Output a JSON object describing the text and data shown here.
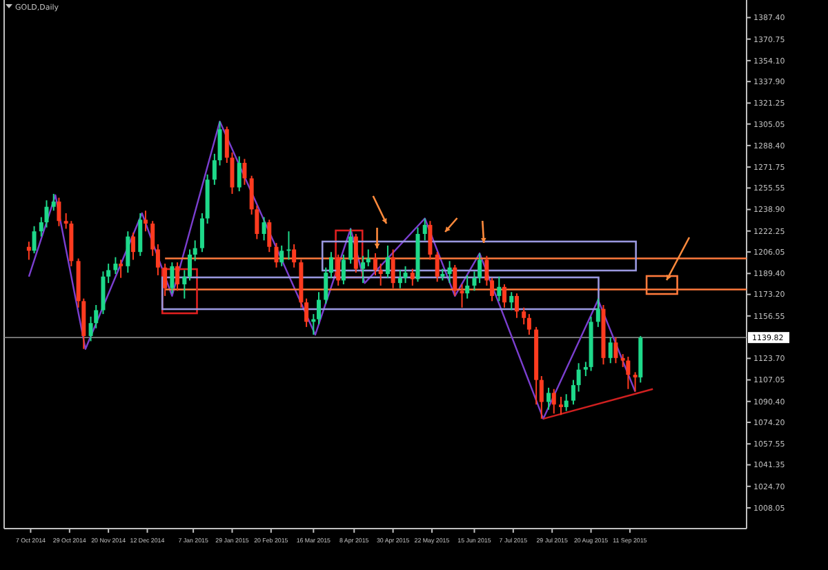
{
  "chart_data": {
    "type": "candlestick",
    "title": "GOLD,Daily",
    "x": [
      "2014-10-06",
      "2014-10-09",
      "2014-10-13",
      "2014-10-16",
      "2014-10-20",
      "2014-10-23",
      "2014-10-27",
      "2014-10-30",
      "2014-11-03",
      "2014-11-06",
      "2014-11-10",
      "2014-11-13",
      "2014-11-17",
      "2014-11-20",
      "2014-11-24",
      "2014-11-27",
      "2014-12-01",
      "2014-12-04",
      "2014-12-08",
      "2014-12-11",
      "2014-12-15",
      "2014-12-18",
      "2014-12-22",
      "2014-12-26",
      "2014-12-29",
      "2015-01-02",
      "2015-01-05",
      "2015-01-08",
      "2015-01-12",
      "2015-01-15",
      "2015-01-19",
      "2015-01-22",
      "2015-01-26",
      "2015-01-29",
      "2015-02-02",
      "2015-02-05",
      "2015-02-09",
      "2015-02-12",
      "2015-02-16",
      "2015-02-19",
      "2015-02-23",
      "2015-02-26",
      "2015-03-02",
      "2015-03-05",
      "2015-03-09",
      "2015-03-12",
      "2015-03-16",
      "2015-03-19",
      "2015-03-23",
      "2015-03-26",
      "2015-03-30",
      "2015-04-02",
      "2015-04-06",
      "2015-04-09",
      "2015-04-13",
      "2015-04-16",
      "2015-04-20",
      "2015-04-23",
      "2015-04-27",
      "2015-04-30",
      "2015-05-04",
      "2015-05-07",
      "2015-05-11",
      "2015-05-14",
      "2015-05-18",
      "2015-05-21",
      "2015-05-25",
      "2015-05-28",
      "2015-06-01",
      "2015-06-04",
      "2015-06-08",
      "2015-06-11",
      "2015-06-15",
      "2015-06-18",
      "2015-06-22",
      "2015-06-25",
      "2015-06-29",
      "2015-07-02",
      "2015-07-06",
      "2015-07-09",
      "2015-07-13",
      "2015-07-16",
      "2015-07-20",
      "2015-07-23",
      "2015-07-27",
      "2015-07-30",
      "2015-08-03",
      "2015-08-06",
      "2015-08-10",
      "2015-08-13",
      "2015-08-17",
      "2015-08-20",
      "2015-08-24",
      "2015-08-27",
      "2015-08-31",
      "2015-09-03",
      "2015-09-07",
      "2015-09-10",
      "2015-09-14",
      "2015-09-17"
    ],
    "ohlc": [
      [
        1210,
        1214,
        1200,
        1207
      ],
      [
        1207,
        1226,
        1205,
        1222
      ],
      [
        1222,
        1233,
        1218,
        1229
      ],
      [
        1229,
        1246,
        1225,
        1241
      ],
      [
        1241,
        1251,
        1238,
        1245
      ],
      [
        1245,
        1248,
        1226,
        1230
      ],
      [
        1230,
        1236,
        1224,
        1228
      ],
      [
        1228,
        1230,
        1195,
        1199
      ],
      [
        1199,
        1201,
        1163,
        1168
      ],
      [
        1168,
        1170,
        1131,
        1141
      ],
      [
        1141,
        1156,
        1137,
        1151
      ],
      [
        1151,
        1165,
        1147,
        1161
      ],
      [
        1161,
        1191,
        1158,
        1187
      ],
      [
        1187,
        1197,
        1182,
        1192
      ],
      [
        1192,
        1202,
        1189,
        1197
      ],
      [
        1197,
        1200,
        1186,
        1195
      ],
      [
        1195,
        1222,
        1190,
        1218
      ],
      [
        1218,
        1221,
        1200,
        1206
      ],
      [
        1206,
        1236,
        1203,
        1231
      ],
      [
        1231,
        1238,
        1222,
        1228
      ],
      [
        1228,
        1230,
        1203,
        1208
      ],
      [
        1208,
        1212,
        1188,
        1194
      ],
      [
        1194,
        1197,
        1172,
        1178
      ],
      [
        1178,
        1198,
        1174,
        1195
      ],
      [
        1195,
        1198,
        1176,
        1181
      ],
      [
        1181,
        1192,
        1170,
        1187
      ],
      [
        1187,
        1208,
        1184,
        1204
      ],
      [
        1204,
        1215,
        1199,
        1209
      ],
      [
        1209,
        1236,
        1206,
        1232
      ],
      [
        1232,
        1266,
        1228,
        1262
      ],
      [
        1262,
        1282,
        1258,
        1277
      ],
      [
        1277,
        1307,
        1273,
        1301
      ],
      [
        1301,
        1303,
        1275,
        1279
      ],
      [
        1279,
        1283,
        1251,
        1256
      ],
      [
        1256,
        1280,
        1253,
        1275
      ],
      [
        1275,
        1278,
        1258,
        1263
      ],
      [
        1263,
        1265,
        1235,
        1239
      ],
      [
        1239,
        1242,
        1216,
        1220
      ],
      [
        1220,
        1233,
        1215,
        1229
      ],
      [
        1229,
        1231,
        1206,
        1210
      ],
      [
        1210,
        1213,
        1194,
        1198
      ],
      [
        1198,
        1211,
        1195,
        1207
      ],
      [
        1207,
        1222,
        1200,
        1208
      ],
      [
        1208,
        1212,
        1194,
        1198
      ],
      [
        1198,
        1200,
        1163,
        1167
      ],
      [
        1167,
        1170,
        1148,
        1152
      ],
      [
        1152,
        1158,
        1142,
        1154
      ],
      [
        1154,
        1175,
        1150,
        1169
      ],
      [
        1169,
        1194,
        1166,
        1190
      ],
      [
        1190,
        1206,
        1186,
        1202
      ],
      [
        1202,
        1204,
        1180,
        1184
      ],
      [
        1184,
        1204,
        1181,
        1200
      ],
      [
        1200,
        1224,
        1197,
        1218
      ],
      [
        1218,
        1220,
        1190,
        1193
      ],
      [
        1193,
        1203,
        1182,
        1198
      ],
      [
        1198,
        1208,
        1195,
        1201
      ],
      [
        1201,
        1205,
        1188,
        1192
      ],
      [
        1192,
        1197,
        1180,
        1189
      ],
      [
        1189,
        1211,
        1186,
        1202
      ],
      [
        1202,
        1208,
        1178,
        1182
      ],
      [
        1182,
        1192,
        1178,
        1186
      ],
      [
        1186,
        1195,
        1182,
        1190
      ],
      [
        1190,
        1193,
        1180,
        1185
      ],
      [
        1185,
        1225,
        1183,
        1220
      ],
      [
        1220,
        1232,
        1215,
        1227
      ],
      [
        1227,
        1230,
        1200,
        1204
      ],
      [
        1204,
        1206,
        1183,
        1187
      ],
      [
        1187,
        1193,
        1184,
        1189
      ],
      [
        1189,
        1199,
        1182,
        1194
      ],
      [
        1194,
        1196,
        1172,
        1176
      ],
      [
        1176,
        1181,
        1163,
        1174
      ],
      [
        1174,
        1188,
        1170,
        1180
      ],
      [
        1180,
        1191,
        1176,
        1186
      ],
      [
        1186,
        1205,
        1182,
        1200
      ],
      [
        1200,
        1203,
        1180,
        1184
      ],
      [
        1184,
        1186,
        1168,
        1172
      ],
      [
        1172,
        1187,
        1168,
        1179
      ],
      [
        1179,
        1181,
        1163,
        1167
      ],
      [
        1167,
        1175,
        1161,
        1172
      ],
      [
        1172,
        1174,
        1155,
        1160
      ],
      [
        1160,
        1163,
        1150,
        1155
      ],
      [
        1155,
        1158,
        1142,
        1146
      ],
      [
        1146,
        1148,
        1088,
        1107
      ],
      [
        1107,
        1110,
        1077,
        1090
      ],
      [
        1090,
        1101,
        1084,
        1097
      ],
      [
        1097,
        1100,
        1081,
        1088
      ],
      [
        1088,
        1094,
        1080,
        1086
      ],
      [
        1086,
        1096,
        1083,
        1091
      ],
      [
        1091,
        1107,
        1088,
        1103
      ],
      [
        1103,
        1120,
        1098,
        1115
      ],
      [
        1115,
        1121,
        1110,
        1117
      ],
      [
        1117,
        1156,
        1114,
        1152
      ],
      [
        1152,
        1170,
        1148,
        1162
      ],
      [
        1162,
        1165,
        1119,
        1124
      ],
      [
        1124,
        1140,
        1120,
        1136
      ],
      [
        1136,
        1140,
        1120,
        1124
      ],
      [
        1124,
        1127,
        1117,
        1122
      ],
      [
        1122,
        1125,
        1100,
        1111
      ],
      [
        1111,
        1113,
        1098,
        1109
      ],
      [
        1109,
        1141,
        1105,
        1139.82
      ]
    ],
    "series": [
      {
        "type": "line",
        "color": "#7b3fd0",
        "x": [
          "2014-10-06",
          "2014-10-21",
          "2014-11-07",
          "2014-12-09",
          "2014-12-26",
          "2015-01-22",
          "2015-03-17",
          "2015-04-06",
          "2015-04-14",
          "2015-05-18",
          "2015-06-04",
          "2015-06-18",
          "2015-07-24",
          "2015-08-24",
          "2015-09-14"
        ],
        "values": [
          1187,
          1250,
          1131,
          1236,
          1172,
          1307,
          1142,
          1224,
          1182,
          1232,
          1172,
          1205,
          1077,
          1169,
          1098
        ]
      },
      {
        "type": "line",
        "color": "#d02020",
        "x": [
          "2015-07-24",
          "2015-09-24"
        ],
        "values": [
          1077,
          1100
        ]
      },
      {
        "type": "line",
        "color": "#ff7a3c",
        "x": [
          "2014-12-22",
          "2015-11-16"
        ],
        "values": [
          1201,
          1201
        ]
      },
      {
        "type": "line",
        "color": "#ff7a3c",
        "x": [
          "2014-12-22",
          "2015-11-16"
        ],
        "values": [
          1177,
          1177
        ]
      }
    ],
    "ref_lines": [
      {
        "axis": "y",
        "value": 1139.82,
        "label": "1139.82",
        "color": "#808080"
      }
    ],
    "xlim": [
      "2014-09-22",
      "2015-11-16"
    ],
    "ylim": [
      992,
      1401
    ],
    "xticks": [
      {
        "value": "2014-10-07",
        "label": "7 Oct 2014"
      },
      {
        "value": "2014-10-29",
        "label": "29 Oct 2014"
      },
      {
        "value": "2014-11-20",
        "label": "20 Nov 2014"
      },
      {
        "value": "2014-12-12",
        "label": "12 Dec 2014"
      },
      {
        "value": "2015-01-07",
        "label": "7 Jan 2015"
      },
      {
        "value": "2015-01-29",
        "label": "29 Jan 2015"
      },
      {
        "value": "2015-02-20",
        "label": "20 Feb 2015"
      },
      {
        "value": "2015-03-16",
        "label": "16 Mar 2015"
      },
      {
        "value": "2015-04-08",
        "label": "8 Apr 2015"
      },
      {
        "value": "2015-04-30",
        "label": "30 Apr 2015"
      },
      {
        "value": "2015-05-22",
        "label": "22 May 2015"
      },
      {
        "value": "2015-06-15",
        "label": "15 Jun 2015"
      },
      {
        "value": "2015-07-07",
        "label": "7 Jul 2015"
      },
      {
        "value": "2015-07-29",
        "label": "29 Jul 2015"
      },
      {
        "value": "2015-08-20",
        "label": "20 Aug 2015"
      },
      {
        "value": "2015-09-11",
        "label": "11 Sep 2015"
      }
    ],
    "yticks": [
      {
        "value": 1008.05,
        "label": "1008.05"
      },
      {
        "value": 1024.7,
        "label": "1024.70"
      },
      {
        "value": 1041.35,
        "label": "1041.35"
      },
      {
        "value": 1057.55,
        "label": "1057.55"
      },
      {
        "value": 1074.2,
        "label": "1074.20"
      },
      {
        "value": 1090.4,
        "label": "1090.40"
      },
      {
        "value": 1107.05,
        "label": "1107.05"
      },
      {
        "value": 1123.7,
        "label": "1123.70"
      },
      {
        "value": 1156.55,
        "label": "1156.55"
      },
      {
        "value": 1173.2,
        "label": "1173.20"
      },
      {
        "value": 1189.4,
        "label": "1189.40"
      },
      {
        "value": 1206.05,
        "label": "1206.05"
      },
      {
        "value": 1222.25,
        "label": "1222.25"
      },
      {
        "value": 1238.9,
        "label": "1238.90"
      },
      {
        "value": 1255.55,
        "label": "1255.55"
      },
      {
        "value": 1271.75,
        "label": "1271.75"
      },
      {
        "value": 1288.4,
        "label": "1288.40"
      },
      {
        "value": 1305.05,
        "label": "1305.05"
      },
      {
        "value": 1321.25,
        "label": "1321.25"
      },
      {
        "value": 1337.9,
        "label": "1337.90"
      },
      {
        "value": 1354.1,
        "label": "1354.10"
      },
      {
        "value": 1370.75,
        "label": "1370.75"
      },
      {
        "value": 1387.4,
        "label": "1387.40"
      }
    ]
  }
}
